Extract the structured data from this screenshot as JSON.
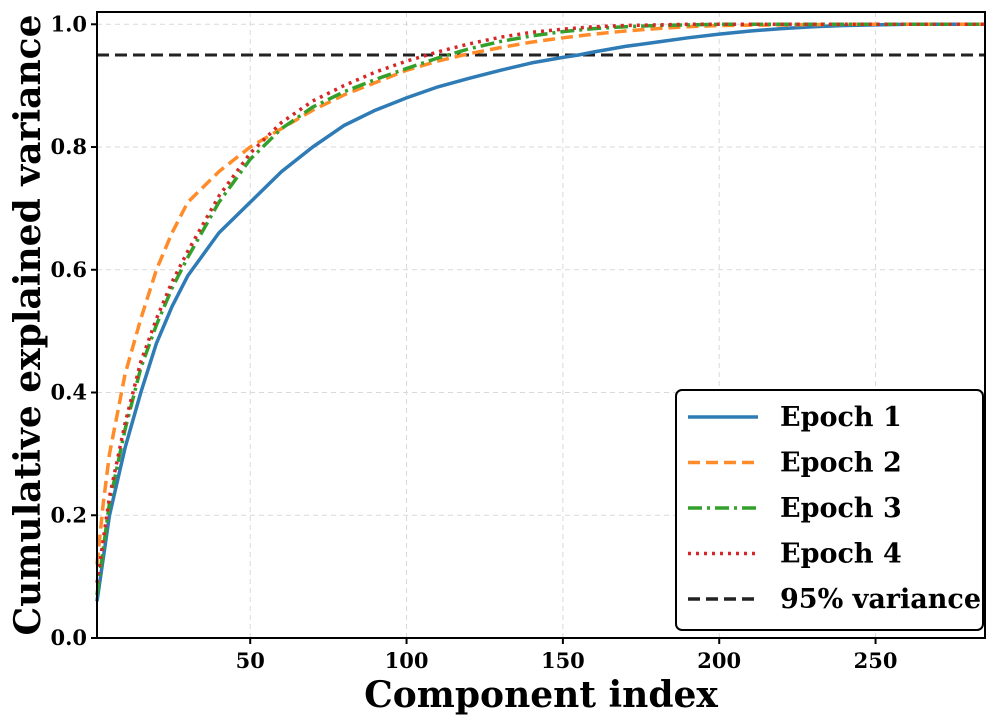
{
  "chart_data": {
    "type": "line",
    "title": "",
    "xlabel": "Component index",
    "ylabel": "Cumulative explained variance",
    "xlim": [
      1,
      285
    ],
    "ylim": [
      0.0,
      1.02
    ],
    "x_ticks": [
      50,
      100,
      150,
      200,
      250
    ],
    "x_tick_labels": [
      "50",
      "100",
      "150",
      "200",
      "250"
    ],
    "y_ticks": [
      0.0,
      0.2,
      0.4,
      0.6,
      0.8,
      1.0
    ],
    "y_tick_labels": [
      "0.0",
      "0.2",
      "0.4",
      "0.6",
      "0.8",
      "1.0"
    ],
    "grid": true,
    "legend_position": "bottom-right",
    "series": [
      {
        "name": "Epoch 1",
        "color": "#2e7bb6",
        "style": "solid",
        "x": [
          1,
          5,
          10,
          15,
          20,
          25,
          30,
          40,
          50,
          60,
          70,
          80,
          90,
          100,
          110,
          120,
          130,
          140,
          150,
          155,
          160,
          170,
          180,
          190,
          200,
          210,
          220,
          230,
          240,
          250,
          260,
          270,
          285
        ],
        "y": [
          0.06,
          0.2,
          0.31,
          0.4,
          0.48,
          0.54,
          0.59,
          0.66,
          0.71,
          0.76,
          0.8,
          0.835,
          0.86,
          0.88,
          0.898,
          0.912,
          0.925,
          0.937,
          0.946,
          0.95,
          0.955,
          0.964,
          0.971,
          0.978,
          0.984,
          0.989,
          0.993,
          0.996,
          0.998,
          0.999,
          1.0,
          1.0,
          1.0
        ]
      },
      {
        "name": "Epoch 2",
        "color": "#ff8c28",
        "style": "dashed",
        "x": [
          1,
          3,
          5,
          10,
          15,
          20,
          25,
          30,
          40,
          50,
          60,
          70,
          80,
          90,
          100,
          110,
          120,
          130,
          140,
          150,
          160,
          170,
          180,
          190,
          200,
          220,
          240,
          260,
          285
        ],
        "y": [
          0.12,
          0.22,
          0.3,
          0.43,
          0.52,
          0.6,
          0.66,
          0.71,
          0.76,
          0.8,
          0.83,
          0.86,
          0.885,
          0.905,
          0.925,
          0.94,
          0.952,
          0.962,
          0.971,
          0.978,
          0.984,
          0.989,
          0.993,
          0.996,
          0.998,
          0.999,
          1.0,
          1.0,
          1.0
        ]
      },
      {
        "name": "Epoch 3",
        "color": "#33a02c",
        "style": "dashdot",
        "x": [
          1,
          5,
          10,
          15,
          20,
          25,
          30,
          40,
          50,
          60,
          70,
          80,
          90,
          100,
          110,
          120,
          130,
          140,
          150,
          160,
          170,
          180,
          190,
          200,
          220,
          240,
          260,
          285
        ],
        "y": [
          0.07,
          0.22,
          0.34,
          0.44,
          0.51,
          0.57,
          0.62,
          0.71,
          0.78,
          0.83,
          0.865,
          0.89,
          0.91,
          0.928,
          0.945,
          0.96,
          0.972,
          0.981,
          0.988,
          0.993,
          0.996,
          0.998,
          0.999,
          1.0,
          1.0,
          1.0,
          1.0,
          1.0
        ]
      },
      {
        "name": "Epoch 4",
        "color": "#d62728",
        "style": "dotted",
        "x": [
          1,
          5,
          10,
          15,
          20,
          25,
          30,
          40,
          50,
          60,
          70,
          80,
          90,
          100,
          110,
          120,
          130,
          140,
          150,
          160,
          170,
          180,
          190,
          200,
          220,
          240,
          260,
          285
        ],
        "y": [
          0.09,
          0.23,
          0.35,
          0.45,
          0.52,
          0.58,
          0.63,
          0.72,
          0.79,
          0.84,
          0.875,
          0.9,
          0.922,
          0.94,
          0.955,
          0.968,
          0.979,
          0.987,
          0.992,
          0.996,
          0.998,
          0.999,
          1.0,
          1.0,
          1.0,
          1.0,
          1.0,
          1.0
        ]
      }
    ],
    "reference_lines": [
      {
        "name": "95% variance",
        "y": 0.95,
        "color": "#222222",
        "style": "dashed"
      }
    ]
  }
}
